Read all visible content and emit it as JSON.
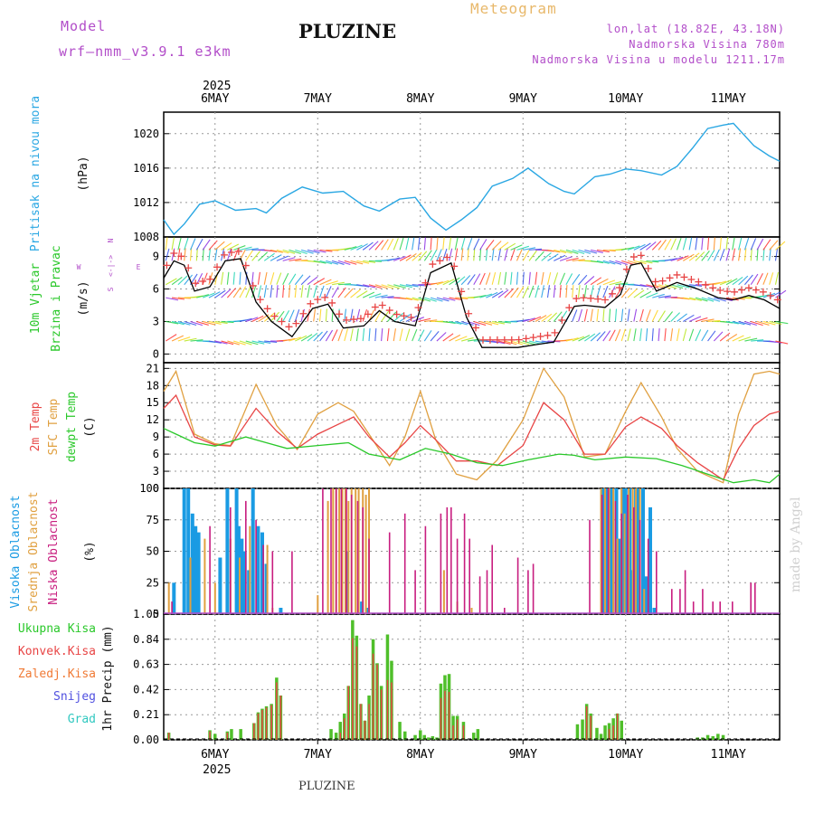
{
  "header": {
    "model_label": "Model",
    "model_name": "wrf—nmm_v3.9.1 e3km",
    "station": "PLUZINE",
    "product": "Meteogram",
    "coords": "lon,lat (18.82E, 43.18N)",
    "elevation": "Nadmorska Visina 780m",
    "model_elevation": "Nadmorska Visina u modelu 1211.17m"
  },
  "footer_station": "PLUZINE",
  "credit": "made by Angel",
  "time_axis": {
    "year": "2025",
    "day_labels": [
      "6MAY",
      "7MAY",
      "8MAY",
      "9MAY",
      "10MAY",
      "11MAY"
    ],
    "day_positions": [
      0.5,
      1.5,
      2.5,
      3.5,
      4.5,
      5.5
    ],
    "range": [
      0,
      6
    ]
  },
  "colors": {
    "pressure": "#2aa7e3",
    "wind_label": "#2ac82a",
    "dir_label": "#b24dc9",
    "temp2m": "#e84545",
    "sfc": "#e0a040",
    "dewpt": "#2ac82a",
    "high_cloud": "#1a9be3",
    "mid_cloud": "#e0a040",
    "low_cloud": "#c81d7f",
    "total_precip": "#4fbf2a",
    "conv_precip": "#e84545",
    "frozen": "#f07a35",
    "snow": "#5050e0",
    "hail": "#30c8c0"
  },
  "chart_data": [
    {
      "type": "line",
      "title": "Pritisak na nivou mora",
      "ylabel": "(hPa)",
      "ylim": [
        1008,
        1022.5
      ],
      "yticks": [
        1008,
        1012,
        1016,
        1020
      ],
      "series": [
        {
          "name": "MSLP",
          "x": [
            0,
            0.1,
            0.2,
            0.35,
            0.5,
            0.7,
            0.9,
            1.0,
            1.15,
            1.35,
            1.55,
            1.75,
            1.95,
            2.1,
            2.3,
            2.45,
            2.6,
            2.75,
            2.9,
            3.05,
            3.2,
            3.4,
            3.55,
            3.75,
            3.9,
            4.0,
            4.2,
            4.35,
            4.5,
            4.65,
            4.85,
            5.0,
            5.15,
            5.3,
            5.45,
            5.55,
            5.75,
            5.9,
            6.0
          ],
          "values": [
            1010,
            1008.3,
            1009.5,
            1011.8,
            1012.2,
            1011.1,
            1011.3,
            1010.8,
            1012.5,
            1013.8,
            1013.1,
            1013.3,
            1011.6,
            1011.0,
            1012.4,
            1012.6,
            1010.2,
            1008.8,
            1010.0,
            1011.4,
            1013.9,
            1014.8,
            1016.0,
            1014.2,
            1013.3,
            1013.0,
            1015.0,
            1015.3,
            1015.9,
            1015.7,
            1015.2,
            1016.2,
            1018.3,
            1020.6,
            1021.0,
            1021.2,
            1018.6,
            1017.4,
            1016.8
          ]
        }
      ]
    },
    {
      "type": "line",
      "title": "10m Vjetar Brzina i Pravac",
      "ylabel": "(m/s)",
      "direction_legend": "W <-|-> E, N / S",
      "ylim": [
        -0.8,
        10.8
      ],
      "yticks": [
        0,
        3,
        6,
        9
      ],
      "series": [
        {
          "name": "Wind speed",
          "x": [
            0,
            0.1,
            0.2,
            0.3,
            0.45,
            0.6,
            0.75,
            0.9,
            1.05,
            1.25,
            1.45,
            1.6,
            1.75,
            1.95,
            2.1,
            2.25,
            2.45,
            2.6,
            2.8,
            2.95,
            3.1,
            3.25,
            3.45,
            3.65,
            3.8,
            4.0,
            4.1,
            4.3,
            4.45,
            4.55,
            4.65,
            4.8,
            5.0,
            5.2,
            5.4,
            5.55,
            5.7,
            5.85,
            6.0
          ],
          "values": [
            7.0,
            8.6,
            8.2,
            5.8,
            6.2,
            8.6,
            8.8,
            4.8,
            3.0,
            1.6,
            4.2,
            4.6,
            2.4,
            2.6,
            4.0,
            3.0,
            2.6,
            7.5,
            8.4,
            3.4,
            0.6,
            0.6,
            0.6,
            0.9,
            1.1,
            4.4,
            4.5,
            4.3,
            5.5,
            8.2,
            8.4,
            5.8,
            6.6,
            6.0,
            5.2,
            5.0,
            5.4,
            5.0,
            4.2
          ]
        }
      ]
    },
    {
      "type": "line",
      "title": "2m Temp / SFC Temp / dewpt Temp",
      "ylabel": "(C)",
      "ylim": [
        0,
        22
      ],
      "yticks": [
        0,
        3,
        6,
        9,
        12,
        15,
        18,
        21
      ],
      "series": [
        {
          "name": "2m Temp",
          "x": [
            0,
            0.12,
            0.3,
            0.5,
            0.65,
            0.9,
            1.1,
            1.3,
            1.5,
            1.85,
            2.0,
            2.2,
            2.35,
            2.5,
            2.65,
            2.85,
            3.05,
            3.25,
            3.5,
            3.7,
            3.9,
            4.1,
            4.3,
            4.5,
            4.65,
            4.85,
            5.0,
            5.2,
            5.45,
            5.6,
            5.75,
            5.9,
            6.0
          ],
          "values": [
            14,
            16.3,
            9.0,
            7.6,
            7.4,
            14.0,
            10.0,
            7.0,
            9.5,
            12.5,
            9.0,
            5.5,
            8.0,
            11.0,
            8.5,
            4.8,
            4.8,
            4.0,
            7.5,
            15.0,
            12.0,
            6.0,
            6.0,
            10.8,
            12.5,
            10.5,
            7.5,
            4.5,
            1.5,
            7.0,
            11.0,
            13.0,
            13.5
          ]
        },
        {
          "name": "SFC Temp",
          "x": [
            0,
            0.12,
            0.3,
            0.5,
            0.65,
            0.9,
            1.1,
            1.3,
            1.5,
            1.7,
            1.85,
            2.0,
            2.2,
            2.35,
            2.5,
            2.65,
            2.85,
            3.05,
            3.25,
            3.5,
            3.7,
            3.9,
            4.1,
            4.3,
            4.5,
            4.65,
            4.85,
            5.0,
            5.2,
            5.45,
            5.6,
            5.75,
            5.9,
            6.0
          ],
          "values": [
            17,
            20.5,
            9.5,
            7.8,
            7.5,
            18.2,
            11.0,
            6.8,
            13.0,
            15.0,
            13.5,
            9.5,
            4.0,
            9.0,
            17.0,
            8.5,
            2.5,
            1.5,
            5.0,
            12.0,
            21.0,
            16.0,
            5.5,
            6.0,
            13.5,
            18.5,
            12.5,
            7.0,
            3.0,
            1.0,
            13.0,
            20.0,
            20.5,
            20.0
          ]
        },
        {
          "name": "dewpt Temp",
          "x": [
            0,
            0.12,
            0.3,
            0.5,
            0.8,
            1.0,
            1.2,
            1.5,
            1.8,
            2.0,
            2.3,
            2.55,
            2.8,
            3.05,
            3.3,
            3.55,
            3.85,
            4.0,
            4.2,
            4.5,
            4.8,
            5.05,
            5.3,
            5.55,
            5.75,
            5.9,
            6.0
          ],
          "values": [
            10.5,
            9.5,
            8.0,
            7.4,
            9.0,
            8.0,
            7.0,
            7.5,
            8.0,
            6.0,
            5.0,
            7.0,
            6.0,
            4.5,
            4.0,
            5.0,
            6.0,
            5.8,
            5.0,
            5.5,
            5.2,
            4.0,
            2.5,
            1.0,
            1.5,
            1.0,
            2.5
          ]
        }
      ]
    },
    {
      "type": "bar",
      "title": "Visoka Oblacnost / Srednja Oblacnost / Niska Oblacnost",
      "ylabel": "(%)",
      "ylim": [
        0,
        100
      ],
      "yticks": [
        0,
        25,
        50,
        75,
        100
      ],
      "series": [
        {
          "name": "Visoka Oblacnost",
          "x": [
            0.1,
            0.2,
            0.24,
            0.28,
            0.31,
            0.34,
            0.55,
            0.62,
            0.71,
            0.73,
            0.76,
            0.79,
            0.83,
            0.87,
            0.92,
            0.96,
            1.0,
            1.14,
            1.78,
            1.93,
            1.98,
            4.28,
            4.31,
            4.34,
            4.37,
            4.41,
            4.44,
            4.47,
            4.5,
            4.54,
            4.57,
            4.6,
            4.63,
            4.67,
            4.7,
            4.74,
            4.78
          ],
          "values": [
            25,
            100,
            100,
            80,
            70,
            65,
            45,
            100,
            100,
            70,
            60,
            50,
            35,
            100,
            70,
            65,
            40,
            5,
            50,
            10,
            5,
            100,
            100,
            100,
            100,
            100,
            60,
            100,
            100,
            100,
            35,
            100,
            100,
            100,
            30,
            85,
            5
          ]
        },
        {
          "name": "Srednja Oblacnost",
          "x": [
            0.05,
            0.26,
            0.4,
            0.5,
            0.65,
            0.74,
            0.84,
            1.01,
            1.06,
            1.5,
            1.6,
            1.65,
            1.68,
            1.71,
            1.74,
            1.77,
            1.8,
            1.83,
            1.87,
            1.9,
            1.94,
            1.97,
            2.0,
            2.73,
            2.86,
            3.0,
            4.26,
            4.3,
            4.34,
            4.38,
            4.42,
            4.46,
            4.49,
            4.53,
            4.57,
            4.6,
            4.64,
            4.68
          ],
          "values": [
            25,
            45,
            60,
            25,
            60,
            45,
            70,
            55,
            5,
            15,
            90,
            100,
            100,
            100,
            100,
            100,
            90,
            100,
            100,
            100,
            100,
            95,
            100,
            35,
            10,
            5,
            100,
            100,
            100,
            100,
            60,
            100,
            80,
            100,
            100,
            100,
            100,
            20
          ]
        },
        {
          "name": "Niska Oblacnost",
          "x": [
            0.08,
            0.45,
            0.65,
            0.8,
            0.9,
            0.97,
            1.06,
            1.25,
            1.55,
            1.63,
            1.68,
            1.73,
            1.78,
            1.83,
            1.89,
            1.94,
            2.0,
            2.2,
            2.35,
            2.45,
            2.55,
            2.7,
            2.76,
            2.8,
            2.86,
            2.93,
            2.98,
            3.08,
            3.15,
            3.2,
            3.32,
            3.45,
            3.55,
            3.6,
            4.15,
            4.27,
            4.33,
            4.4,
            4.46,
            4.52,
            4.58,
            4.64,
            4.72,
            4.8,
            4.95,
            5.03,
            5.08,
            5.16,
            5.25,
            5.35,
            5.42,
            5.54,
            5.72,
            5.76
          ],
          "values": [
            10,
            70,
            85,
            90,
            75,
            55,
            50,
            50,
            100,
            100,
            100,
            100,
            100,
            95,
            90,
            85,
            60,
            65,
            80,
            35,
            70,
            80,
            85,
            85,
            60,
            80,
            60,
            30,
            35,
            55,
            5,
            45,
            35,
            40,
            75,
            95,
            100,
            90,
            80,
            95,
            85,
            75,
            60,
            50,
            20,
            20,
            35,
            10,
            20,
            10,
            10,
            10,
            25,
            25
          ]
        }
      ]
    },
    {
      "type": "bar",
      "title": "Ukupna Kisa / Konvek.Kisa / Zaledj.Kisa / Snijeg / Grad",
      "ylabel": "1hr Precip (mm)",
      "ylim": [
        0,
        1.05
      ],
      "yticks": [
        0,
        0.21,
        0.42,
        0.63,
        0.84,
        1.05
      ],
      "series": [
        {
          "name": "Ukupna Kisa",
          "x": [
            0.05,
            0.45,
            0.5,
            0.62,
            0.66,
            0.75,
            0.88,
            0.92,
            0.96,
            1.0,
            1.05,
            1.1,
            1.14,
            1.63,
            1.68,
            1.72,
            1.76,
            1.8,
            1.84,
            1.88,
            1.92,
            1.96,
            2.0,
            2.04,
            2.08,
            2.12,
            2.18,
            2.22,
            2.3,
            2.35,
            2.45,
            2.5,
            2.54,
            2.58,
            2.62,
            2.66,
            2.7,
            2.74,
            2.78,
            2.82,
            2.86,
            2.92,
            3.02,
            3.06,
            4.03,
            4.08,
            4.12,
            4.16,
            4.22,
            4.26,
            4.3,
            4.34,
            4.38,
            4.42,
            4.46,
            5.2,
            5.25,
            5.3,
            5.35,
            5.4,
            5.45
          ],
          "values": [
            0.06,
            0.08,
            0.05,
            0.07,
            0.09,
            0.09,
            0.14,
            0.23,
            0.26,
            0.28,
            0.3,
            0.52,
            0.37,
            0.09,
            0.06,
            0.15,
            0.22,
            0.45,
            1.0,
            0.87,
            0.3,
            0.16,
            0.37,
            0.84,
            0.64,
            0.45,
            0.88,
            0.66,
            0.15,
            0.07,
            0.04,
            0.08,
            0.04,
            0.02,
            0.03,
            0.02,
            0.47,
            0.54,
            0.55,
            0.2,
            0.2,
            0.15,
            0.06,
            0.09,
            0.13,
            0.17,
            0.3,
            0.22,
            0.1,
            0.05,
            0.12,
            0.14,
            0.18,
            0.22,
            0.16,
            0.02,
            0.02,
            0.04,
            0.03,
            0.05,
            0.04
          ]
        },
        {
          "name": "Konvek.Kisa",
          "x": [
            0.05,
            0.45,
            0.62,
            0.88,
            0.92,
            0.96,
            1.0,
            1.05,
            1.1,
            1.14,
            1.72,
            1.76,
            1.8,
            1.84,
            1.88,
            1.92,
            1.96,
            2.0,
            2.04,
            2.08,
            2.12,
            2.18,
            2.22,
            2.7,
            2.74,
            2.78,
            2.82,
            2.86,
            2.92,
            4.12,
            4.16,
            4.34,
            4.38,
            4.42
          ],
          "values": [
            0.06,
            0.07,
            0.06,
            0.14,
            0.22,
            0.25,
            0.27,
            0.29,
            0.48,
            0.37,
            0.06,
            0.18,
            0.45,
            0.85,
            0.78,
            0.3,
            0.16,
            0.3,
            0.72,
            0.63,
            0.42,
            0.5,
            0.48,
            0.35,
            0.41,
            0.4,
            0.12,
            0.17,
            0.12,
            0.28,
            0.2,
            0.09,
            0.12,
            0.22
          ]
        }
      ]
    }
  ],
  "labels": {
    "pressure": [
      "Pritisak na nivou mora",
      "(hPa)"
    ],
    "wind": [
      "10m Vjetar",
      "Brzina i Pravac",
      "(m/s)"
    ],
    "wind_dir": [
      "W",
      "<-|->",
      "E",
      "N",
      "S"
    ],
    "temp": [
      "2m Temp",
      "SFC Temp",
      "dewpt Temp",
      "(C)"
    ],
    "cloud": [
      "Visoka Oblacnost",
      "Srednja Oblacnost",
      "Niska Oblacnost",
      "(%)"
    ],
    "precip": [
      "Ukupna Kisa",
      "Konvek.Kisa",
      "Zaledj.Kisa",
      "Snijeg",
      "Grad",
      "1hr Precip (mm)"
    ]
  }
}
